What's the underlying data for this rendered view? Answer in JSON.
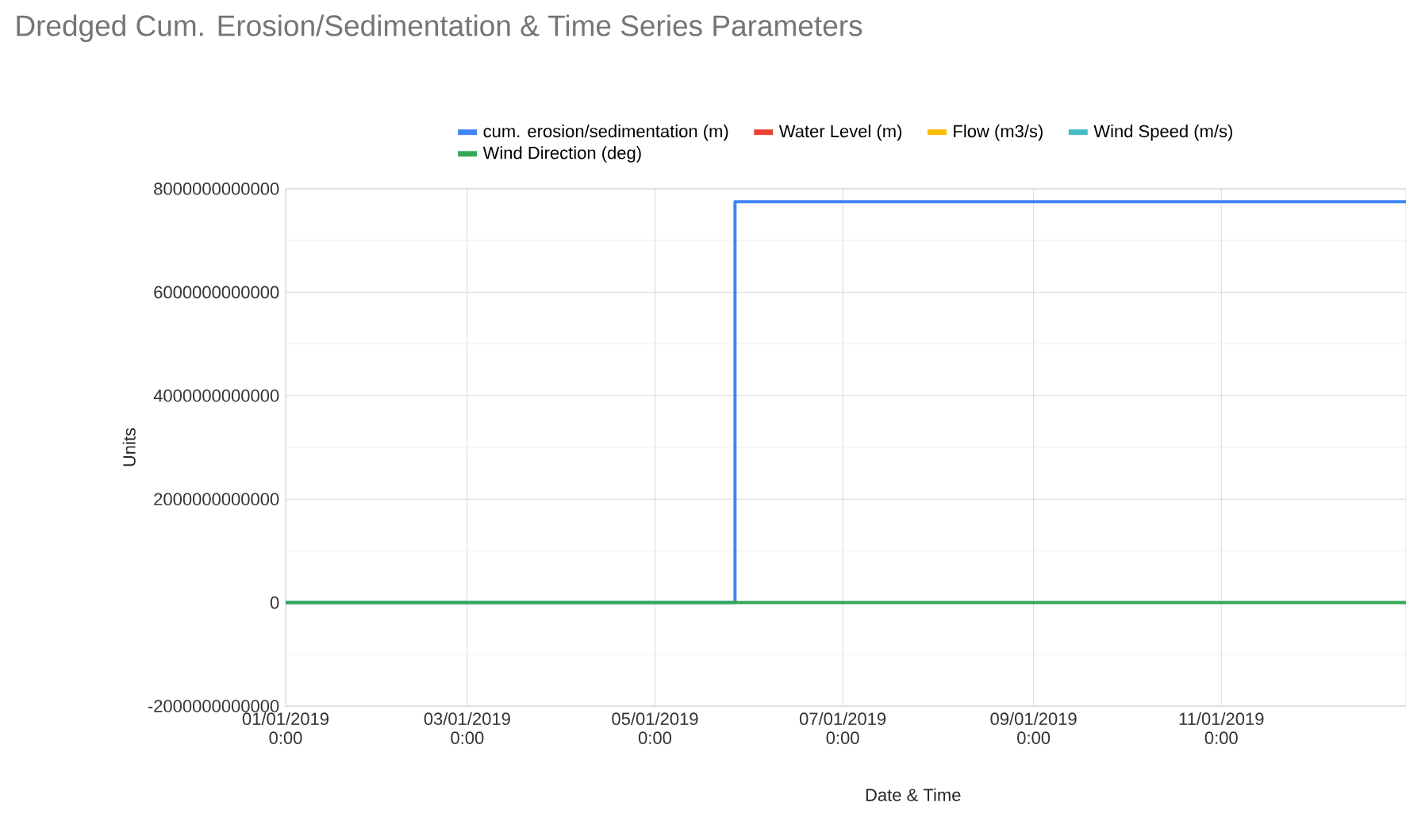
{
  "chart_data": {
    "type": "line",
    "title": "Dredged Cum. Erosion/Sedimentation & Time Series Parameters",
    "xlabel": "Date & Time",
    "ylabel": "Units",
    "xlim": [
      "2019-01-01",
      "2019-12-31"
    ],
    "xticks": [
      {
        "value": "2019-01-01",
        "label": "01/01/2019 0:00"
      },
      {
        "value": "2019-03-01",
        "label": "03/01/2019 0:00"
      },
      {
        "value": "2019-05-01",
        "label": "05/01/2019 0:00"
      },
      {
        "value": "2019-07-01",
        "label": "07/01/2019 0:00"
      },
      {
        "value": "2019-09-01",
        "label": "09/01/2019 0:00"
      },
      {
        "value": "2019-11-01",
        "label": "11/01/2019 0:00"
      }
    ],
    "ylim": [
      -2000000000000,
      8000000000000
    ],
    "yticks": [
      {
        "value": -2000000000000,
        "label": "-2000000000000"
      },
      0,
      {
        "value": 2000000000000,
        "label": "2000000000000"
      },
      {
        "value": 4000000000000,
        "label": "4000000000000"
      },
      {
        "value": 6000000000000,
        "label": "6000000000000"
      },
      {
        "value": 8000000000000,
        "label": "8000000000000"
      }
    ],
    "grid": true,
    "legend": "top",
    "series": [
      {
        "name": "cum. erosion/sedimentation (m)",
        "color": "#4285f4",
        "type": "step",
        "x": [
          "2019-01-01",
          "2019-05-27",
          "2019-12-31"
        ],
        "values": [
          0,
          7750000000000,
          7750000000000
        ]
      },
      {
        "name": "Water Level (m)",
        "color": "#ea4335",
        "values": [
          null,
          null
        ]
      },
      {
        "name": "Flow (m3/s)",
        "color": "#fbbc04",
        "values": [
          null,
          null
        ]
      },
      {
        "name": "Wind Speed (m/s)",
        "color": "#46bdc6",
        "values": [
          null,
          null
        ]
      },
      {
        "name": "Wind Direction (deg)",
        "color": "#34a853",
        "x": [
          "2019-01-01",
          "2019-12-31"
        ],
        "values": [
          0,
          0
        ]
      }
    ]
  }
}
